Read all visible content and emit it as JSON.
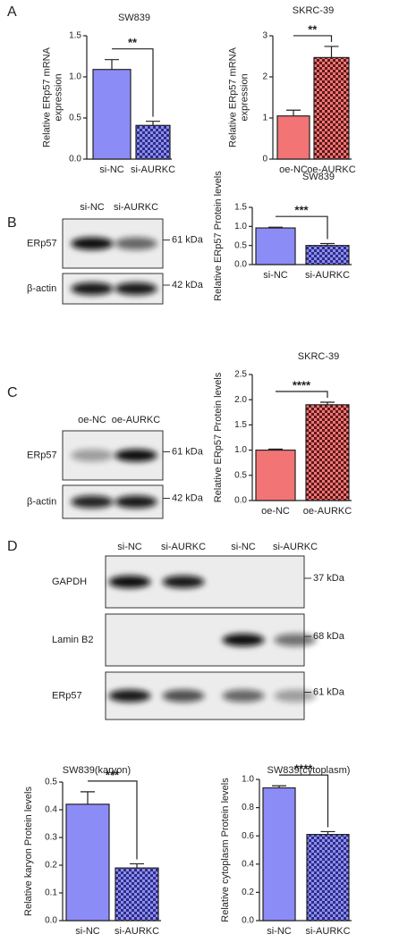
{
  "panels": [
    "A",
    "B",
    "C",
    "D"
  ],
  "blots": [
    {
      "lanes": [
        "si-NC",
        "si-AURKC"
      ],
      "rows": [
        {
          "label": "ERp57",
          "size": "61 kDa"
        },
        {
          "label": "β-actin",
          "size": "42 kDa"
        }
      ]
    },
    {
      "lanes": [
        "oe-NC",
        "oe-AURKC"
      ],
      "rows": [
        {
          "label": "ERp57",
          "size": "61 kDa"
        },
        {
          "label": "β-actin",
          "size": "42 kDa"
        }
      ]
    },
    {
      "lanes": [
        "si-NC",
        "si-AURKC",
        "si-NC",
        "si-AURKC"
      ],
      "rows": [
        {
          "label": "GAPDH",
          "size": "37 kDa"
        },
        {
          "label": "Lamin B2",
          "size": "68 kDa"
        },
        {
          "label": "ERp57",
          "size": "61 kDa"
        }
      ]
    }
  ],
  "chart_data": [
    {
      "type": "bar",
      "title": "SW839",
      "ylabel": [
        "Relative ERp57 mRNA",
        "expression"
      ],
      "categories": [
        "si-NC",
        "si-AURKC"
      ],
      "values": [
        1.09,
        0.41
      ],
      "errors": [
        0.12,
        0.05
      ],
      "significance": "**",
      "colors": [
        "#8c8cf7",
        "#8c8cf7"
      ],
      "fill_styles": [
        "solid",
        "checkered"
      ],
      "pattern_color": "#2e2e80",
      "ylim": [
        0,
        1.5
      ],
      "yticks": [
        {
          "value": 0,
          "label": "0.0"
        },
        0.5,
        {
          "value": 1,
          "label": "1.0"
        },
        1.5
      ]
    },
    {
      "type": "bar",
      "title": "SKRC-39",
      "ylabel": [
        "Relative ERp57 mRNA",
        "expression"
      ],
      "categories": [
        "oe-NC",
        "oe-AURKC"
      ],
      "values": [
        1.05,
        2.47
      ],
      "errors": [
        0.14,
        0.27
      ],
      "significance": "**",
      "colors": [
        "#f27474",
        "#f27474"
      ],
      "fill_styles": [
        "solid",
        "checkered"
      ],
      "pattern_color": "#5a1a1a",
      "ylim": [
        0,
        3
      ],
      "yticks": [
        0,
        1,
        2,
        3
      ]
    },
    {
      "type": "bar",
      "title": "SW839",
      "ylabel": [
        "Relative ERp57 Protein levels"
      ],
      "categories": [
        "si-NC",
        "si-AURKC"
      ],
      "values": [
        0.96,
        0.5
      ],
      "errors": [
        0.02,
        0.05
      ],
      "significance": "***",
      "colors": [
        "#8c8cf7",
        "#8c8cf7"
      ],
      "fill_styles": [
        "solid",
        "checkered"
      ],
      "pattern_color": "#2e2e80",
      "ylim": [
        0,
        1.5
      ],
      "yticks": [
        {
          "value": 0,
          "label": "0.0"
        },
        0.5,
        {
          "value": 1,
          "label": "1.0"
        },
        1.5
      ]
    },
    {
      "type": "bar",
      "title": "SKRC-39",
      "ylabel": [
        "Relative ERp57 Protein levels"
      ],
      "categories": [
        "oe-NC",
        "oe-AURKC"
      ],
      "values": [
        1.0,
        1.9
      ],
      "errors": [
        0.02,
        0.05
      ],
      "significance": "****",
      "colors": [
        "#f27474",
        "#f27474"
      ],
      "fill_styles": [
        "solid",
        "checkered"
      ],
      "pattern_color": "#5a1a1a",
      "ylim": [
        0,
        2.5
      ],
      "yticks": [
        {
          "value": 0,
          "label": "0.0"
        },
        0.5,
        {
          "value": 1,
          "label": "1.0"
        },
        1.5,
        {
          "value": 2,
          "label": "2.0"
        },
        2.5
      ]
    },
    {
      "type": "bar",
      "title": "SW839(karyon)",
      "ylabel": [
        "Relative karyon Protein levels"
      ],
      "categories": [
        "si-NC",
        "si-AURKC"
      ],
      "values": [
        0.42,
        0.19
      ],
      "errors": [
        0.045,
        0.015
      ],
      "significance": "***",
      "colors": [
        "#8c8cf7",
        "#8c8cf7"
      ],
      "fill_styles": [
        "solid",
        "checkered"
      ],
      "pattern_color": "#2e2e80",
      "ylim": [
        0,
        0.5
      ],
      "yticks": [
        {
          "value": 0,
          "label": "0.0"
        },
        0.1,
        0.2,
        0.3,
        0.4,
        0.5
      ]
    },
    {
      "type": "bar",
      "title": "SW839(cytoplasm)",
      "ylabel": [
        "Relative cytoplasm Protein levels"
      ],
      "categories": [
        "si-NC",
        "si-AURKC"
      ],
      "values": [
        0.94,
        0.61
      ],
      "errors": [
        0.015,
        0.02
      ],
      "significance": "****",
      "colors": [
        "#8c8cf7",
        "#8c8cf7"
      ],
      "fill_styles": [
        "solid",
        "checkered"
      ],
      "pattern_color": "#2e2e80",
      "ylim": [
        0,
        1.0
      ],
      "yticks": [
        {
          "value": 0,
          "label": "0.0"
        },
        0.2,
        0.4,
        0.6,
        0.8,
        {
          "value": 1,
          "label": "1.0"
        }
      ]
    }
  ]
}
